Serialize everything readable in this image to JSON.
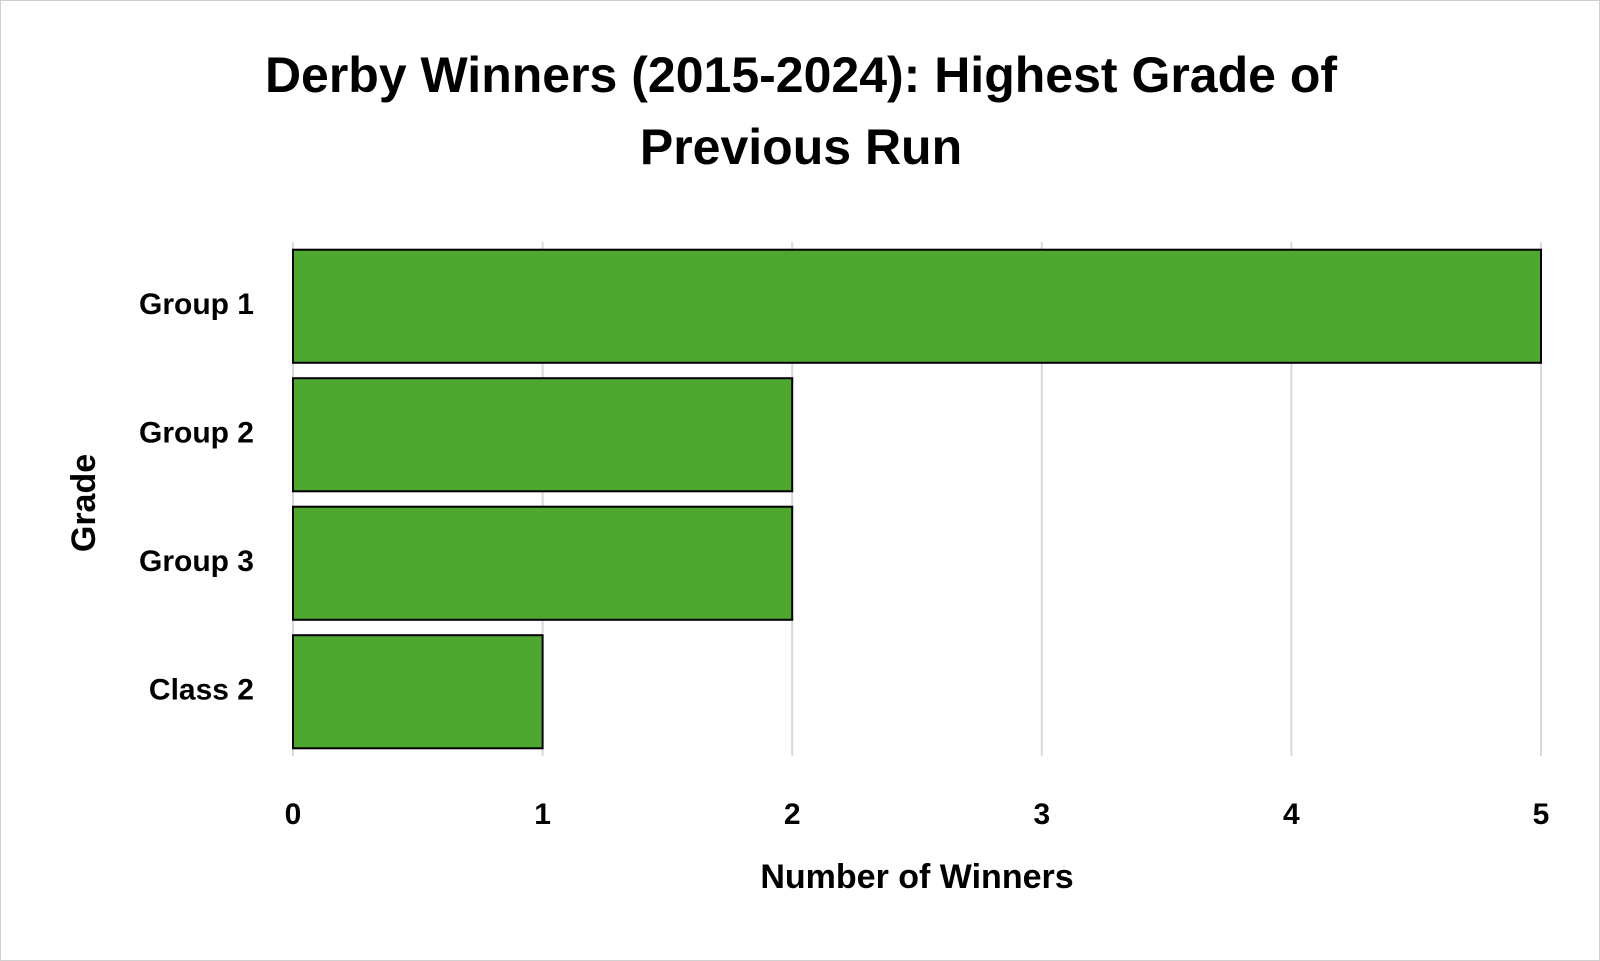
{
  "chart_data": {
    "type": "bar",
    "orientation": "horizontal",
    "title": "Derby Winners (2015-2024): Highest Grade of Previous Run",
    "x_label": "Number of Winners",
    "y_label": "Grade",
    "categories": [
      "Group 1",
      "Group 2",
      "Group 3",
      "Class 2"
    ],
    "values": [
      5,
      2,
      2,
      1
    ],
    "color": "#4ea72e",
    "xlim": [
      0,
      5
    ],
    "xticks": [
      0,
      1,
      2,
      3,
      4,
      5
    ],
    "grid": true
  }
}
